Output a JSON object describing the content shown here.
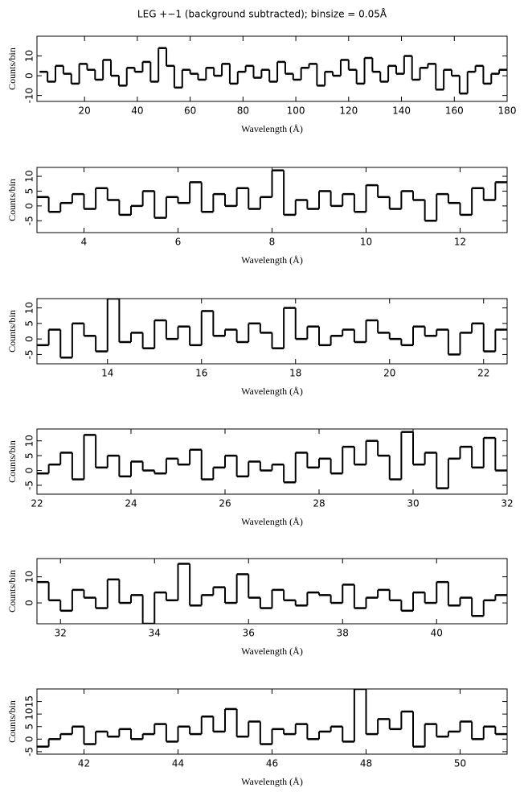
{
  "title": "LEG +−1 (background subtracted); binsize = 0.05Å",
  "chart_data": [
    {
      "type": "line",
      "drawstyle": "steps",
      "xlabel": "Wavelength (Å)",
      "ylabel": "Counts/bin",
      "xlim": [
        2,
        180
      ],
      "ylim": [
        -13,
        20
      ],
      "xticks": [
        20,
        40,
        60,
        80,
        100,
        120,
        140,
        160,
        180
      ],
      "yticks": [
        -10,
        0,
        10
      ],
      "x": [
        3,
        6,
        9,
        12,
        15,
        18,
        21,
        24,
        27,
        30,
        33,
        36,
        39,
        42,
        45,
        48,
        51,
        54,
        57,
        60,
        63,
        66,
        69,
        72,
        75,
        78,
        81,
        84,
        87,
        90,
        93,
        96,
        99,
        102,
        105,
        108,
        111,
        114,
        117,
        120,
        123,
        126,
        129,
        132,
        135,
        138,
        141,
        144,
        147,
        150,
        153,
        156,
        159,
        162,
        165,
        168,
        171,
        174,
        177
      ],
      "series": [
        {
          "color": "#000000",
          "values": [
            2,
            -3,
            5,
            1,
            -4,
            6,
            3,
            -2,
            8,
            0,
            -5,
            4,
            2,
            7,
            -3,
            14,
            5,
            -6,
            3,
            1,
            -2,
            4,
            0,
            6,
            -4,
            2,
            5,
            -1,
            3,
            -3,
            7,
            1,
            -2,
            4,
            6,
            -5,
            2,
            0,
            8,
            3,
            -4,
            9,
            2,
            -3,
            5,
            1,
            10,
            -2,
            4,
            6,
            -7,
            3,
            0,
            -9,
            2,
            5,
            -4,
            1,
            3
          ]
        }
      ]
    },
    {
      "type": "line",
      "drawstyle": "steps",
      "xlabel": "Wavelength (Å)",
      "ylabel": "Counts/bin",
      "xlim": [
        3,
        13
      ],
      "ylim": [
        -9,
        13
      ],
      "xticks": [
        4,
        6,
        8,
        10,
        12
      ],
      "yticks": [
        -5,
        0,
        5,
        10
      ],
      "x": [
        3,
        3.25,
        3.5,
        3.75,
        4,
        4.25,
        4.5,
        4.75,
        5,
        5.25,
        5.5,
        5.75,
        6,
        6.25,
        6.5,
        6.75,
        7,
        7.25,
        7.5,
        7.75,
        8,
        8.25,
        8.5,
        8.75,
        9,
        9.25,
        9.5,
        9.75,
        10,
        10.25,
        10.5,
        10.75,
        11,
        11.25,
        11.5,
        11.75,
        12,
        12.25,
        12.5,
        12.75
      ],
      "series": [
        {
          "color": "#000000",
          "values": [
            3,
            -2,
            1,
            4,
            -1,
            6,
            2,
            -3,
            0,
            5,
            -4,
            3,
            1,
            8,
            -2,
            4,
            0,
            6,
            -1,
            3,
            12,
            -3,
            2,
            -1,
            5,
            0,
            4,
            -2,
            7,
            3,
            -1,
            5,
            2,
            -5,
            4,
            1,
            -3,
            6,
            2,
            8
          ]
        }
      ]
    },
    {
      "type": "line",
      "drawstyle": "steps",
      "xlabel": "Wavelength (Å)",
      "ylabel": "Counts/bin",
      "xlim": [
        12.5,
        22.5
      ],
      "ylim": [
        -8,
        13
      ],
      "xticks": [
        14,
        16,
        18,
        20,
        22
      ],
      "yticks": [
        -5,
        0,
        5,
        10
      ],
      "x": [
        12.5,
        12.75,
        13,
        13.25,
        13.5,
        13.75,
        14,
        14.25,
        14.5,
        14.75,
        15,
        15.25,
        15.5,
        15.75,
        16,
        16.25,
        16.5,
        16.75,
        17,
        17.25,
        17.5,
        17.75,
        18,
        18.25,
        18.5,
        18.75,
        19,
        19.25,
        19.5,
        19.75,
        20,
        20.25,
        20.5,
        20.75,
        21,
        21.25,
        21.5,
        21.75,
        22,
        22.25
      ],
      "series": [
        {
          "color": "#000000",
          "values": [
            -2,
            3,
            -6,
            5,
            1,
            -4,
            13,
            -1,
            2,
            -3,
            6,
            0,
            4,
            -2,
            9,
            1,
            3,
            -1,
            5,
            2,
            -3,
            10,
            0,
            4,
            -2,
            1,
            3,
            -1,
            6,
            2,
            0,
            -2,
            4,
            1,
            3,
            -5,
            2,
            5,
            -4,
            3
          ]
        }
      ]
    },
    {
      "type": "line",
      "drawstyle": "steps",
      "xlabel": "Wavelength (Å)",
      "ylabel": "Counts/bin",
      "xlim": [
        22,
        32
      ],
      "ylim": [
        -8,
        14
      ],
      "xticks": [
        22,
        24,
        26,
        28,
        30,
        32
      ],
      "yticks": [
        -5,
        0,
        5,
        10
      ],
      "x": [
        22,
        22.25,
        22.5,
        22.75,
        23,
        23.25,
        23.5,
        23.75,
        24,
        24.25,
        24.5,
        24.75,
        25,
        25.25,
        25.5,
        25.75,
        26,
        26.25,
        26.5,
        26.75,
        27,
        27.25,
        27.5,
        27.75,
        28,
        28.25,
        28.5,
        28.75,
        29,
        29.25,
        29.5,
        29.75,
        30,
        30.25,
        30.5,
        30.75,
        31,
        31.25,
        31.5,
        31.75
      ],
      "series": [
        {
          "color": "#000000",
          "values": [
            -1,
            2,
            6,
            -3,
            12,
            1,
            5,
            -2,
            3,
            0,
            -1,
            4,
            2,
            7,
            -3,
            1,
            5,
            -2,
            3,
            0,
            2,
            -4,
            6,
            1,
            4,
            -1,
            8,
            2,
            10,
            5,
            -3,
            13,
            2,
            6,
            -6,
            4,
            8,
            1,
            11,
            0
          ]
        }
      ]
    },
    {
      "type": "line",
      "drawstyle": "steps",
      "xlabel": "Wavelength (Å)",
      "ylabel": "Counts/bin",
      "xlim": [
        31.5,
        41.5
      ],
      "ylim": [
        -8,
        17
      ],
      "xticks": [
        32,
        34,
        36,
        38,
        40
      ],
      "yticks": [
        0,
        10
      ],
      "x": [
        31.5,
        31.75,
        32,
        32.25,
        32.5,
        32.75,
        33,
        33.25,
        33.5,
        33.75,
        34,
        34.25,
        34.5,
        34.75,
        35,
        35.25,
        35.5,
        35.75,
        36,
        36.25,
        36.5,
        36.75,
        37,
        37.25,
        37.5,
        37.75,
        38,
        38.25,
        38.5,
        38.75,
        39,
        39.25,
        39.5,
        39.75,
        40,
        40.25,
        40.5,
        40.75,
        41,
        41.25
      ],
      "series": [
        {
          "color": "#000000",
          "values": [
            8,
            1,
            -3,
            5,
            2,
            -2,
            9,
            0,
            3,
            -8,
            4,
            1,
            15,
            -1,
            3,
            6,
            0,
            11,
            2,
            -2,
            5,
            1,
            -1,
            4,
            3,
            0,
            7,
            -2,
            2,
            5,
            1,
            -3,
            4,
            0,
            8,
            -1,
            2,
            -5,
            1,
            3
          ]
        }
      ]
    },
    {
      "type": "line",
      "drawstyle": "steps",
      "xlabel": "Wavelength (Å)",
      "ylabel": "Counts/bin",
      "xlim": [
        41,
        51
      ],
      "ylim": [
        -6,
        20
      ],
      "xticks": [
        42,
        44,
        46,
        48,
        50
      ],
      "yticks": [
        -5,
        0,
        5,
        10,
        15
      ],
      "x": [
        41,
        41.25,
        41.5,
        41.75,
        42,
        42.25,
        42.5,
        42.75,
        43,
        43.25,
        43.5,
        43.75,
        44,
        44.25,
        44.5,
        44.75,
        45,
        45.25,
        45.5,
        45.75,
        46,
        46.25,
        46.5,
        46.75,
        47,
        47.25,
        47.5,
        47.75,
        48,
        48.25,
        48.5,
        48.75,
        49,
        49.25,
        49.5,
        49.75,
        50,
        50.25,
        50.5,
        50.75
      ],
      "series": [
        {
          "color": "#000000",
          "values": [
            -3,
            0,
            2,
            5,
            -2,
            3,
            1,
            4,
            0,
            2,
            6,
            -1,
            5,
            2,
            9,
            3,
            12,
            1,
            7,
            -2,
            4,
            2,
            6,
            0,
            3,
            5,
            -1,
            20,
            2,
            8,
            4,
            11,
            -3,
            6,
            1,
            3,
            7,
            0,
            5,
            2
          ]
        }
      ]
    }
  ]
}
